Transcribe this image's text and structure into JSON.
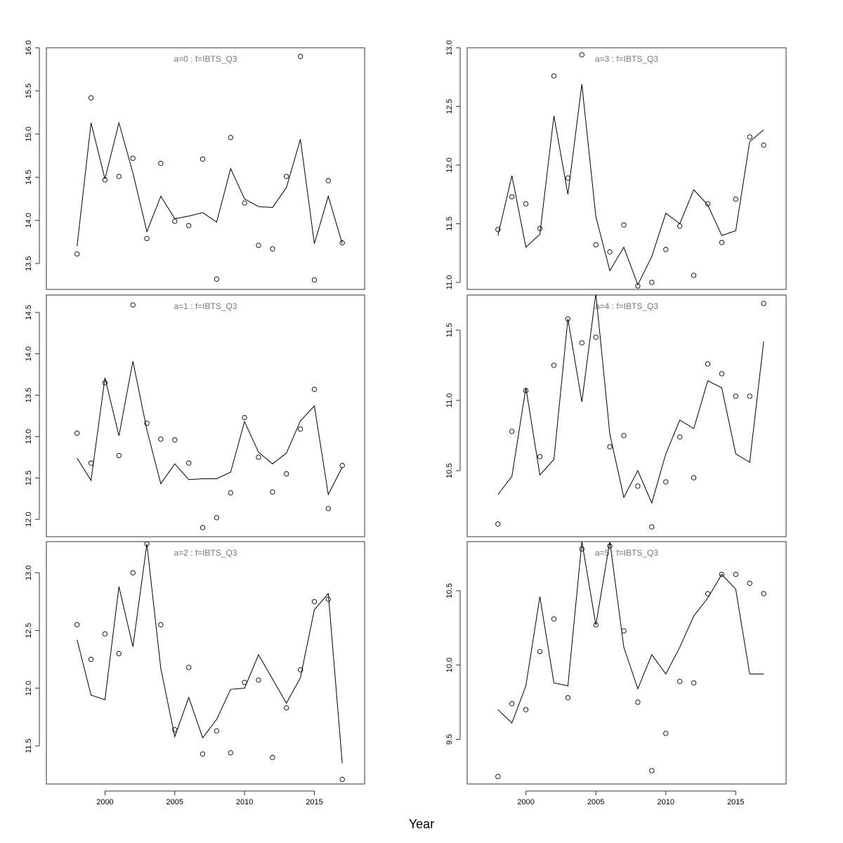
{
  "figure": {
    "xlabel": "Year"
  },
  "chart_data": [
    {
      "type": "line",
      "title": "a=0  :  f=IBTS_Q3",
      "xlim": [
        1995.8,
        2018.6
      ],
      "ylim": [
        13.2,
        16.0
      ],
      "x_ticks": [
        2000,
        2005,
        2010,
        2015
      ],
      "y_ticks": [
        13.5,
        14.0,
        14.5,
        15.0,
        15.5,
        16.0
      ],
      "x": [
        1998,
        1999,
        2000,
        2001,
        2002,
        2003,
        2004,
        2005,
        2006,
        2007,
        2008,
        2009,
        2010,
        2011,
        2012,
        2013,
        2014,
        2015,
        2016,
        2017
      ],
      "series": [
        {
          "kind": "points",
          "values": [
            13.61,
            15.42,
            14.47,
            14.51,
            14.72,
            13.79,
            14.66,
            13.99,
            13.94,
            14.71,
            13.32,
            14.96,
            14.2,
            13.71,
            13.67,
            14.51,
            15.9,
            13.31,
            14.46,
            13.74
          ]
        },
        {
          "kind": "line",
          "values": [
            13.7,
            15.13,
            14.48,
            15.13,
            14.55,
            13.87,
            14.28,
            14.02,
            14.05,
            14.09,
            13.98,
            14.6,
            14.25,
            14.16,
            14.15,
            14.38,
            14.94,
            13.73,
            14.28,
            13.73
          ]
        }
      ]
    },
    {
      "type": "line",
      "title": "a=3  :  f=IBTS_Q3",
      "xlim": [
        1995.8,
        2018.6
      ],
      "ylim": [
        10.94,
        13.0
      ],
      "x_ticks": [
        2000,
        2005,
        2010,
        2015
      ],
      "y_ticks": [
        11.0,
        11.5,
        12.0,
        12.5,
        13.0
      ],
      "x": [
        1998,
        1999,
        2000,
        2001,
        2002,
        2003,
        2004,
        2005,
        2006,
        2007,
        2008,
        2009,
        2010,
        2011,
        2012,
        2013,
        2014,
        2015,
        2016,
        2017
      ],
      "series": [
        {
          "kind": "points",
          "values": [
            11.45,
            11.73,
            11.67,
            11.46,
            12.76,
            11.89,
            12.94,
            11.32,
            11.26,
            11.49,
            10.97,
            11.0,
            11.28,
            11.48,
            11.06,
            11.67,
            11.34,
            11.71,
            12.24,
            12.17
          ]
        },
        {
          "kind": "line",
          "values": [
            11.4,
            11.91,
            11.3,
            11.41,
            12.42,
            11.75,
            12.69,
            11.56,
            11.1,
            11.3,
            10.98,
            11.22,
            11.59,
            11.5,
            11.79,
            11.66,
            11.4,
            11.44,
            12.2,
            12.3
          ]
        }
      ]
    },
    {
      "type": "line",
      "title": "a=1  :  f=IBTS_Q3",
      "xlim": [
        1995.8,
        2018.6
      ],
      "ylim": [
        11.79,
        14.71
      ],
      "x_ticks": [
        2000,
        2005,
        2010,
        2015
      ],
      "y_ticks": [
        12.0,
        12.5,
        13.0,
        13.5,
        14.0,
        14.5
      ],
      "x": [
        1998,
        1999,
        2000,
        2001,
        2002,
        2003,
        2004,
        2005,
        2006,
        2007,
        2008,
        2009,
        2010,
        2011,
        2012,
        2013,
        2014,
        2015,
        2016,
        2017
      ],
      "series": [
        {
          "kind": "points",
          "values": [
            13.04,
            12.68,
            13.65,
            12.77,
            14.59,
            13.16,
            12.97,
            12.96,
            12.68,
            11.9,
            12.02,
            12.32,
            13.23,
            12.75,
            12.33,
            12.55,
            13.09,
            13.57,
            12.13,
            12.65
          ]
        },
        {
          "kind": "line",
          "values": [
            12.74,
            12.47,
            13.71,
            13.01,
            13.91,
            13.08,
            12.43,
            12.67,
            12.48,
            12.49,
            12.49,
            12.57,
            13.18,
            12.81,
            12.67,
            12.8,
            13.19,
            13.37,
            12.3,
            12.63
          ]
        }
      ]
    },
    {
      "type": "line",
      "title": "a=4  :  f=IBTS_Q3",
      "xlim": [
        1995.8,
        2018.6
      ],
      "ylim": [
        10.03,
        11.75
      ],
      "x_ticks": [
        2000,
        2005,
        2010,
        2015
      ],
      "y_ticks": [
        10.5,
        11.0,
        11.5
      ],
      "x": [
        1998,
        1999,
        2000,
        2001,
        2002,
        2003,
        2004,
        2005,
        2006,
        2007,
        2008,
        2009,
        2010,
        2011,
        2012,
        2013,
        2014,
        2015,
        2016,
        2017
      ],
      "series": [
        {
          "kind": "points",
          "values": [
            10.12,
            10.78,
            11.07,
            10.6,
            11.25,
            11.58,
            11.41,
            11.45,
            10.67,
            10.75,
            10.39,
            10.1,
            10.42,
            10.74,
            10.45,
            11.26,
            11.19,
            11.03,
            11.03,
            11.69
          ]
        },
        {
          "kind": "line",
          "values": [
            10.33,
            10.46,
            11.09,
            10.47,
            10.58,
            11.58,
            10.99,
            11.76,
            10.76,
            10.31,
            10.5,
            10.27,
            10.62,
            10.86,
            10.8,
            11.14,
            11.09,
            10.62,
            10.56,
            11.42
          ]
        }
      ]
    },
    {
      "type": "line",
      "title": "a=2  :  f=IBTS_Q3",
      "xlim": [
        1995.8,
        2018.6
      ],
      "ylim": [
        11.17,
        13.27
      ],
      "x_ticks": [
        2000,
        2005,
        2010,
        2015
      ],
      "y_ticks": [
        11.5,
        12.0,
        12.5,
        13.0
      ],
      "x": [
        1998,
        1999,
        2000,
        2001,
        2002,
        2003,
        2004,
        2005,
        2006,
        2007,
        2008,
        2009,
        2010,
        2011,
        2012,
        2013,
        2014,
        2015,
        2016,
        2017
      ],
      "series": [
        {
          "kind": "points",
          "values": [
            12.55,
            12.25,
            12.47,
            12.3,
            13.0,
            13.25,
            12.55,
            11.64,
            12.18,
            11.43,
            11.63,
            11.44,
            12.05,
            12.07,
            11.4,
            11.83,
            12.16,
            12.75,
            12.77,
            11.21
          ]
        },
        {
          "kind": "line",
          "values": [
            12.42,
            11.94,
            11.9,
            12.88,
            12.36,
            13.25,
            12.17,
            11.58,
            11.92,
            11.57,
            11.73,
            11.99,
            12.0,
            12.29,
            12.08,
            11.87,
            12.09,
            12.68,
            12.82,
            11.35
          ]
        }
      ]
    },
    {
      "type": "line",
      "title": "a=5  :  f=IBTS_Q3",
      "xlim": [
        1995.8,
        2018.6
      ],
      "ylim": [
        9.2,
        10.83
      ],
      "x_ticks": [
        2000,
        2005,
        2010,
        2015
      ],
      "y_ticks": [
        9.5,
        10.0,
        10.5
      ],
      "x": [
        1998,
        1999,
        2000,
        2001,
        2002,
        2003,
        2004,
        2005,
        2006,
        2007,
        2008,
        2009,
        2010,
        2011,
        2012,
        2013,
        2014,
        2015,
        2016,
        2017
      ],
      "series": [
        {
          "kind": "points",
          "values": [
            9.25,
            9.74,
            9.7,
            10.09,
            10.31,
            9.78,
            10.78,
            10.27,
            10.8,
            10.23,
            9.75,
            9.29,
            9.54,
            9.89,
            9.88,
            10.48,
            10.61,
            10.61,
            10.55,
            10.48
          ]
        },
        {
          "kind": "line",
          "values": [
            9.7,
            9.61,
            9.86,
            10.46,
            9.88,
            9.86,
            10.83,
            10.27,
            10.83,
            10.12,
            9.84,
            10.07,
            9.94,
            10.12,
            10.33,
            10.45,
            10.61,
            10.51,
            9.94,
            9.94
          ]
        }
      ]
    }
  ]
}
